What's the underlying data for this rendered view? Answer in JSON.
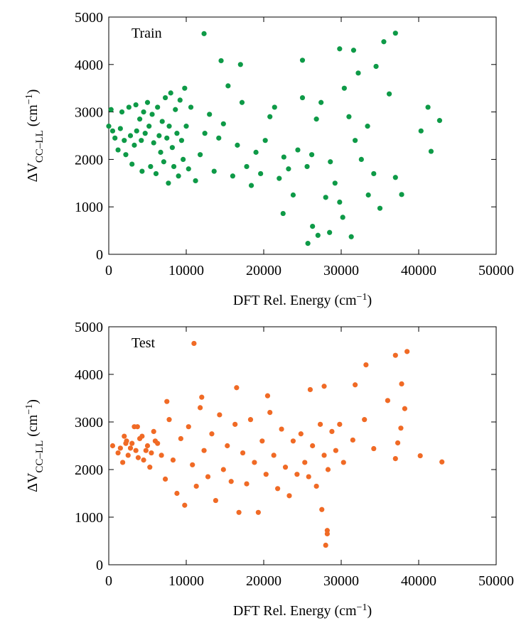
{
  "chart_data": [
    {
      "type": "scatter",
      "xlabel": [
        "DFT Rel. Energy (cm",
        "−1",
        ")"
      ],
      "ylabel": [
        "ΔV",
        "CC–LL",
        " (cm",
        "−1",
        ")"
      ],
      "legend": "upper left",
      "xlim": [
        0,
        50000
      ],
      "xticks": [
        0,
        10000,
        20000,
        30000,
        40000,
        50000
      ],
      "ylim": [
        0,
        5000
      ],
      "yticks": [
        0,
        1000,
        2000,
        3000,
        4000,
        5000
      ],
      "series": [
        {
          "name": "Train",
          "color": "#0e9a47",
          "x": [
            0,
            300,
            800,
            1200,
            1700,
            2200,
            2600,
            3000,
            3300,
            3600,
            4000,
            4300,
            4700,
            5000,
            5400,
            5800,
            6100,
            6500,
            6900,
            7300,
            7700,
            8000,
            8400,
            8800,
            9200,
            9600,
            10000,
            10600,
            11200,
            11800,
            12400,
            13000,
            13600,
            14200,
            14800,
            15400,
            16000,
            16600,
            17200,
            17800,
            18400,
            19000,
            19600,
            20200,
            20800,
            21400,
            22000,
            22600,
            23200,
            23800,
            24400,
            25000,
            25600,
            26200,
            26800,
            27400,
            28000,
            28600,
            29200,
            29800,
            30400,
            31000,
            31800,
            32600,
            33400,
            34200,
            12300,
            37000,
            35500,
            29800,
            31600,
            25000,
            14500,
            17000,
            34500,
            32200,
            36200,
            41200,
            42700,
            40300,
            41600,
            37800,
            37000,
            35000,
            33500,
            31300,
            28500,
            27000,
            25700,
            26300,
            22500,
            30200,
            500,
            1500,
            2000,
            2800,
            3500,
            4200,
            4500,
            5200,
            5600,
            6300,
            6700,
            7100,
            7500,
            7800,
            8200,
            8600,
            9000,
            9400,
            9800,
            10300
          ],
          "values": [
            2700,
            3050,
            2450,
            2200,
            3000,
            2100,
            3100,
            1900,
            2300,
            2600,
            2850,
            1750,
            2550,
            3200,
            1850,
            2350,
            1700,
            2500,
            2800,
            3300,
            1500,
            3400,
            1850,
            2550,
            3250,
            2000,
            2700,
            3100,
            1550,
            2100,
            2550,
            2950,
            1750,
            2450,
            2750,
            3550,
            1650,
            2300,
            3200,
            1850,
            1450,
            2150,
            1700,
            2400,
            2900,
            3100,
            1600,
            2050,
            1800,
            1250,
            2200,
            3300,
            1850,
            2100,
            2850,
            3200,
            1200,
            1950,
            1500,
            1100,
            3500,
            2900,
            2400,
            2000,
            2700,
            1700,
            4650,
            4660,
            4480,
            4330,
            4300,
            4090,
            4080,
            4000,
            3960,
            3820,
            3380,
            3100,
            2820,
            2600,
            2170,
            1260,
            1620,
            970,
            1250,
            370,
            460,
            400,
            230,
            590,
            860,
            780,
            2600,
            2650,
            2400,
            2500,
            3150,
            2400,
            3000,
            2700,
            2950,
            3100,
            2150,
            1950,
            2450,
            2700,
            2250,
            3050,
            1650,
            2400,
            3500,
            1800
          ]
        }
      ]
    },
    {
      "type": "scatter",
      "xlabel": [
        "DFT Rel. Energy (cm",
        "−1",
        ")"
      ],
      "ylabel": [
        "ΔV",
        "CC–LL",
        " (cm",
        "−1",
        ")"
      ],
      "legend": "upper left",
      "xlim": [
        0,
        50000
      ],
      "xticks": [
        0,
        10000,
        20000,
        30000,
        40000,
        50000
      ],
      "ylim": [
        0,
        5000
      ],
      "yticks": [
        0,
        1000,
        2000,
        3000,
        4000,
        5000
      ],
      "series": [
        {
          "name": "Test",
          "color": "#f06a25",
          "x": [
            11000,
            38500,
            37000,
            33200,
            36000,
            37800,
            38200,
            37700,
            37300,
            37000,
            34200,
            33000,
            31800,
            31500,
            40200,
            43000,
            28200,
            28200,
            28000,
            27500,
            26000,
            27800,
            20500,
            16500,
            12000,
            7500,
            500,
            1200,
            1800,
            2300,
            2800,
            3300,
            3800,
            4300,
            4800,
            5300,
            5800,
            6300,
            6800,
            7300,
            7800,
            8300,
            8800,
            9300,
            9800,
            10300,
            10800,
            11300,
            11800,
            12300,
            12800,
            13300,
            13800,
            14300,
            14800,
            15300,
            15800,
            16300,
            16800,
            17300,
            17800,
            18300,
            18800,
            19300,
            19800,
            20300,
            20800,
            21300,
            21800,
            22300,
            22800,
            23300,
            23800,
            24300,
            24800,
            25300,
            25800,
            26300,
            26800,
            27300,
            27800,
            28300,
            28800,
            29300,
            29800,
            30300,
            1500,
            2000,
            2500,
            3000,
            3500,
            4000,
            4500,
            5000,
            5500,
            6000,
            2200,
            3700
          ],
          "values": [
            4650,
            4480,
            4400,
            4200,
            3450,
            3800,
            3280,
            2870,
            2560,
            2230,
            2440,
            3050,
            3780,
            2620,
            2290,
            2160,
            720,
            650,
            410,
            1160,
            3680,
            3750,
            3550,
            3720,
            3520,
            3430,
            2500,
            2350,
            2150,
            2600,
            2450,
            2900,
            2250,
            2700,
            2400,
            2050,
            2800,
            2550,
            2300,
            1800,
            3050,
            2200,
            1500,
            2650,
            1250,
            2900,
            2100,
            1650,
            3300,
            2400,
            1850,
            2750,
            1350,
            3150,
            2000,
            2500,
            1750,
            2950,
            1100,
            2350,
            1700,
            3050,
            2150,
            1100,
            2600,
            1900,
            3200,
            2300,
            1600,
            2850,
            2050,
            1450,
            2600,
            1900,
            2750,
            2150,
            1850,
            2500,
            1650,
            2950,
            2300,
            2000,
            2800,
            2400,
            2950,
            2150,
            2450,
            2700,
            2300,
            2550,
            2400,
            2650,
            2200,
            2500,
            2350,
            2600,
            2550,
            2900
          ]
        }
      ]
    }
  ]
}
